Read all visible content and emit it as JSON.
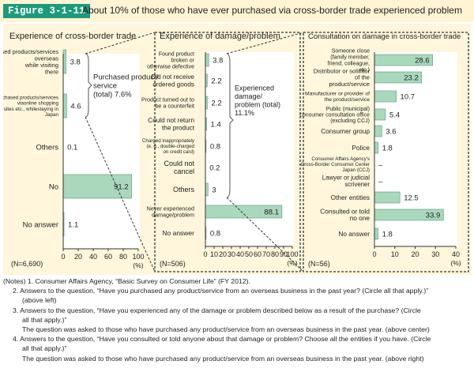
{
  "header": {
    "badge": "Figure 3-1-11",
    "title": "About 10% of those who have ever purchased via cross-border trade experienced problem"
  },
  "colors": {
    "bar": "#a9d8bd",
    "bar_stroke": "#5a9a78",
    "header_bg": "#fff4d4",
    "badge_bg": "#1c9a7c",
    "panel_bg": "#fff6db"
  },
  "chart_data": [
    {
      "type": "bar",
      "orientation": "horizontal",
      "title": "Experience of cross-border trade",
      "categories": [
        "Purchased products/services overseas while visiting there",
        "Purchased products/services viaonline shopping sites etc., whilestaying in Japan",
        "Others",
        "No",
        "No answer"
      ],
      "values": [
        3.8,
        4.6,
        0.1,
        91.2,
        1.1
      ],
      "xlim": [
        0,
        100
      ],
      "xticks": [
        "0",
        "20",
        "40",
        "60",
        "80",
        "100"
      ],
      "unit": "(%)",
      "n": "(N=6,690)",
      "bracket_label": "Purchased product/ service (total) 7.6%",
      "grid": false
    },
    {
      "type": "bar",
      "orientation": "horizontal",
      "title": "Experience of damage/problem",
      "categories": [
        "Found product broken or otherwise defective",
        "Did not receive ordered goods",
        "Product turned out to be a counterfeit",
        "Could not return the product",
        "Charged inappropriately (e. g., double-charged on credit card)",
        "Could not cancel",
        "Others",
        "Never experienced damage/problem",
        "No answer"
      ],
      "values": [
        3.8,
        2.2,
        2.2,
        1.4,
        0.8,
        0.2,
        3.0,
        88.1,
        0.8
      ],
      "xlim": [
        0,
        100
      ],
      "xticks": [
        "0",
        "10",
        "20",
        "30",
        "40",
        "50",
        "60",
        "70",
        "80",
        "90",
        "100"
      ],
      "unit": "(%)",
      "n": "(N=506)",
      "bracket_label": "Experienced damage/ problem (total) 11.1%",
      "grid": false
    },
    {
      "type": "bar",
      "orientation": "horizontal",
      "title": "Consultation on damage in cross-border trade",
      "categories": [
        "Someone close (family member, friend, colleague, etc.)",
        "Distributor or solicitor of the product/service",
        "Manufacturer or provider of the product/service",
        "Public (municipal) consumer consultation office (excluding CCJ)",
        "Consumer group",
        "Police",
        "Consumer Affairs Agency's Cross-Border Consumer Center Japan (CCJ)",
        "Lawyer or judicial scrivener",
        "Other entities",
        "Consulted or told no one",
        "No answer"
      ],
      "values": [
        28.6,
        23.2,
        10.7,
        5.4,
        3.6,
        1.8,
        0,
        0,
        12.5,
        33.9,
        1.8
      ],
      "value_labels": [
        "28.6",
        "23.2",
        "10.7",
        "5.4",
        "3.6",
        "1.8",
        "–",
        "–",
        "12.5",
        "33.9",
        "1.8"
      ],
      "xlim": [
        0,
        40
      ],
      "xticks": [
        "0",
        "10",
        "20",
        "30",
        "40"
      ],
      "unit": "(%)",
      "n": "(N=56)",
      "grid": false
    }
  ],
  "notes": [
    "(Notes) 1. Consumer Affairs Agency, “Basic Survey on Consumer Life” (FY 2012).",
    "2. Answers to the question, “Have you purchased any product/service from an overseas business in the past year? (Circle all that apply.)”",
    "(above left)",
    "3. Answers to the question, “Have you experienced any of the damage or problem described below as a result of the purchase? (Circle",
    "all that apply.)”",
    "The question was asked to those who have purchased any product/service from an overseas business in the past year. (above center)",
    "4. Answers to the question, “Have you consulted or told anyone about that damage or  problem? Choose all the entities if you have. (Circle",
    "all that apply.)”",
    "The question was asked to those who have purchased any product/service from an overseas business in the past year. (above right)"
  ]
}
